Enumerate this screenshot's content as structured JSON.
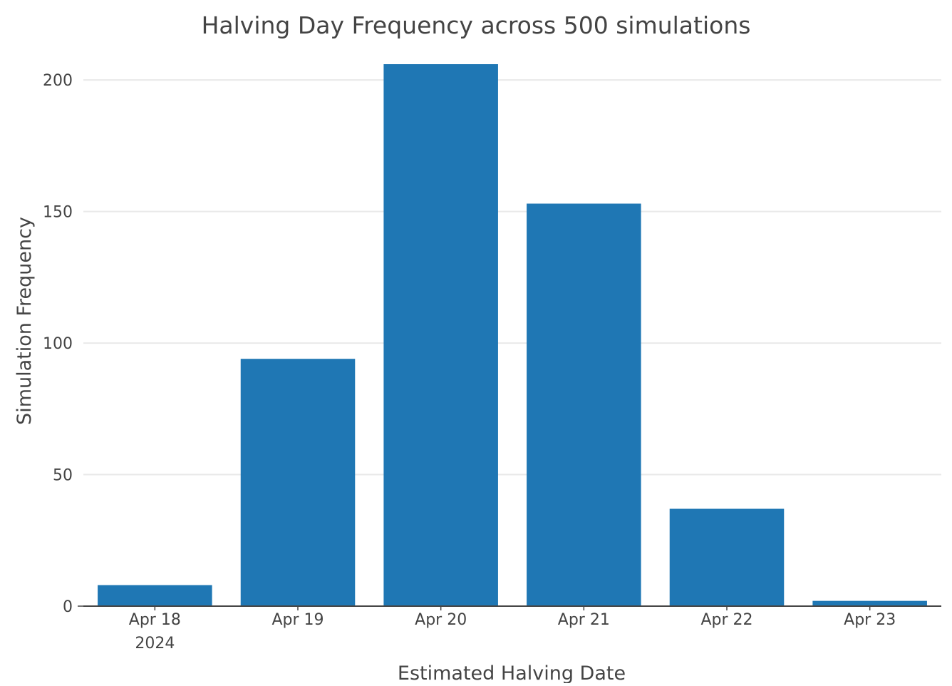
{
  "chart_data": {
    "type": "bar",
    "title": "Halving Day Frequency across 500 simulations",
    "xlabel": "Estimated Halving Date",
    "ylabel": "Simulation Frequency",
    "categories": [
      "Apr 18",
      "Apr 19",
      "Apr 20",
      "Apr 21",
      "Apr 22",
      "Apr 23"
    ],
    "year_label": "2024",
    "values": [
      8,
      94,
      206,
      153,
      37,
      2
    ],
    "ylim": [
      0,
      206
    ],
    "yticks": [
      0,
      50,
      100,
      150,
      200
    ],
    "grid": true,
    "legend": "none",
    "colors": {
      "bar": "#1f77b4",
      "grid": "#e9e9e9",
      "axis_line": "#444444",
      "text": "#444444"
    }
  }
}
